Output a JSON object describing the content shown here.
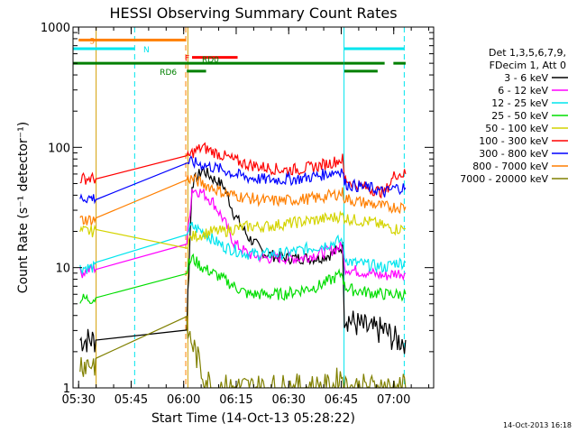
{
  "chart_data": {
    "type": "line",
    "title": "HESSI Observing Summary Count Rates",
    "xlabel": "Start Time (14-Oct-13 05:28:22)",
    "ylabel": "Count Rate (s⁻¹ detector⁻¹)",
    "x_unit": "minutes after 05:28:22",
    "xlim": [
      0,
      103
    ],
    "ylim": [
      1,
      1000
    ],
    "yscale": "log",
    "x_ticks": [
      {
        "value": 1.6,
        "label": "05:30"
      },
      {
        "value": 16.6,
        "label": "05:45"
      },
      {
        "value": 31.6,
        "label": "06:00"
      },
      {
        "value": 46.6,
        "label": "06:15"
      },
      {
        "value": 61.6,
        "label": "06:30"
      },
      {
        "value": 76.6,
        "label": "06:45"
      },
      {
        "value": 91.6,
        "label": "07:00"
      }
    ],
    "y_ticks": [
      {
        "value": 1,
        "label": "1"
      },
      {
        "value": 10,
        "label": "10"
      },
      {
        "value": 100,
        "label": "100"
      },
      {
        "value": 1000,
        "label": "1000"
      }
    ],
    "legend_header": [
      "Det 1,3,5,6,7,9,",
      "FDecim 1, Att 0"
    ],
    "legend_position": "right",
    "series": [
      {
        "name": "3 - 6 keV",
        "color": "#000000",
        "x": [
          2,
          6.5,
          32.5,
          34,
          37,
          40,
          43,
          46,
          50,
          55,
          60,
          65,
          70,
          74,
          77,
          77.5,
          80,
          85,
          89,
          92,
          95
        ],
        "values": [
          2.5,
          2.5,
          3.5,
          50,
          65,
          55,
          48,
          28,
          18,
          13,
          12,
          12,
          12,
          13,
          15,
          4,
          3.5,
          3,
          3,
          2.5,
          2.5
        ]
      },
      {
        "name": "6 - 12 keV",
        "color": "#ff00ff",
        "x": [
          2,
          6.5,
          32.5,
          34,
          37,
          40,
          43,
          46,
          50,
          55,
          60,
          65,
          70,
          74,
          77,
          77.5,
          80,
          85,
          89,
          92,
          95
        ],
        "values": [
          9,
          10,
          16,
          45,
          42,
          35,
          25,
          16,
          13,
          12,
          12,
          12,
          13,
          14,
          15,
          10,
          9.5,
          9,
          8.5,
          9,
          9
        ]
      },
      {
        "name": "12 - 25 keV",
        "color": "#00e5ee",
        "x": [
          2,
          6.5,
          32.5,
          34,
          37,
          40,
          43,
          46,
          50,
          55,
          60,
          65,
          70,
          74,
          77,
          77.5,
          80,
          85,
          89,
          92,
          95
        ],
        "values": [
          10,
          10,
          20,
          22,
          20,
          17,
          15,
          14,
          13,
          13,
          13,
          14,
          15,
          16,
          17,
          12,
          11,
          10.5,
          10,
          11,
          11
        ]
      },
      {
        "name": "25 - 50 keV",
        "color": "#00dd00",
        "x": [
          2,
          6.5,
          32.5,
          34,
          37,
          40,
          43,
          46,
          50,
          55,
          60,
          65,
          70,
          74,
          77,
          77.5,
          80,
          85,
          89,
          92,
          95
        ],
        "values": [
          5.5,
          5.5,
          10,
          12,
          10,
          9,
          8,
          7,
          6,
          6,
          6,
          6.5,
          7,
          8,
          9,
          7,
          6.5,
          6.2,
          6,
          6,
          6
        ]
      },
      {
        "name": "50 - 100 keV",
        "color": "#d4d400",
        "x": [
          2,
          6.5,
          32.5,
          34,
          37,
          40,
          43,
          46,
          50,
          55,
          60,
          65,
          70,
          74,
          77,
          77.5,
          80,
          85,
          89,
          92,
          95
        ],
        "values": [
          20,
          20,
          16,
          18,
          19,
          20,
          20,
          21,
          22,
          22,
          23,
          24,
          25,
          26,
          27,
          26,
          25,
          24,
          22,
          21,
          21
        ]
      },
      {
        "name": "100 - 300 keV",
        "color": "#ff0000",
        "x": [
          2,
          6.5,
          32.5,
          34,
          37,
          40,
          43,
          46,
          50,
          55,
          60,
          65,
          70,
          74,
          77,
          77.5,
          80,
          85,
          89,
          92,
          95
        ],
        "values": [
          55,
          55,
          80,
          90,
          100,
          92,
          85,
          78,
          72,
          68,
          65,
          66,
          70,
          75,
          80,
          55,
          50,
          45,
          42,
          60,
          60
        ]
      },
      {
        "name": "300 - 800 keV",
        "color": "#0000ff",
        "x": [
          2,
          6.5,
          32.5,
          34,
          37,
          40,
          43,
          46,
          50,
          55,
          60,
          65,
          70,
          74,
          77,
          77.5,
          80,
          85,
          89,
          92,
          95
        ],
        "values": [
          38,
          38,
          75,
          75,
          72,
          68,
          65,
          60,
          56,
          54,
          54,
          55,
          58,
          62,
          65,
          50,
          48,
          46,
          42,
          46,
          46
        ]
      },
      {
        "name": "800 - 7000 keV",
        "color": "#ff7f00",
        "x": [
          2,
          6.5,
          32.5,
          34,
          37,
          40,
          43,
          46,
          50,
          55,
          60,
          65,
          70,
          74,
          77,
          77.5,
          80,
          85,
          89,
          92,
          95
        ],
        "values": [
          25,
          25,
          55,
          55,
          50,
          46,
          42,
          40,
          38,
          36,
          36,
          37,
          38,
          40,
          42,
          38,
          36,
          34,
          32,
          32,
          32
        ]
      },
      {
        "name": "7000 - 20000 keV",
        "color": "#808000",
        "x": [
          2,
          6.5,
          32.5,
          34,
          37,
          40,
          43,
          46,
          50,
          55,
          60,
          65,
          70,
          74,
          77,
          77.5,
          80,
          85,
          89,
          92,
          95
        ],
        "values": [
          1.6,
          1.6,
          3.0,
          2.4,
          1.3,
          1.0,
          1.0,
          1.0,
          1.0,
          1.0,
          1.0,
          1.0,
          1.0,
          1.0,
          1.3,
          1.0,
          1.0,
          1.0,
          1.0,
          1.0,
          1.0
        ]
      }
    ],
    "vertical_lines": [
      {
        "x": 6.6,
        "color": "#d4a000",
        "style": "solid"
      },
      {
        "x": 17.6,
        "color": "#00e5ee",
        "style": "dashed"
      },
      {
        "x": 32.2,
        "color": "#ff7f00",
        "style": "dashed"
      },
      {
        "x": 32.8,
        "color": "#d4a000",
        "style": "solid"
      },
      {
        "x": 77.4,
        "color": "#00e5ee",
        "style": "solid"
      },
      {
        "x": 94.6,
        "color": "#00e5ee",
        "style": "dashed"
      }
    ],
    "flag_bars": [
      {
        "label": "S",
        "color": "#ff7f00",
        "x_start": 1.6,
        "x_end": 32.2,
        "y": 780
      },
      {
        "label": "N",
        "color": "#00e5ee",
        "x_start": 0,
        "x_end": 17.6,
        "y": 660
      },
      {
        "label": "",
        "color": "#00e5ee",
        "x_start": 77.4,
        "x_end": 94.6,
        "y": 660
      },
      {
        "label": "F",
        "color": "#ff0000",
        "x_start": 34,
        "x_end": 47,
        "y": 560
      },
      {
        "label": "RD0",
        "color": "#008000",
        "x_start": 0,
        "x_end": 77.4,
        "y": 500
      },
      {
        "label": "",
        "color": "#008000",
        "x_start": 77.5,
        "x_end": 89,
        "y": 500
      },
      {
        "label": "",
        "color": "#008000",
        "x_start": 91.5,
        "x_end": 95,
        "y": 500
      },
      {
        "label": "RD6",
        "color": "#008000",
        "x_start": 32.5,
        "x_end": 38,
        "y": 430
      },
      {
        "label": "",
        "color": "#008000",
        "x_start": 77.5,
        "x_end": 87,
        "y": 430
      }
    ]
  },
  "footer_timestamp": "14-Oct-2013 16:18"
}
